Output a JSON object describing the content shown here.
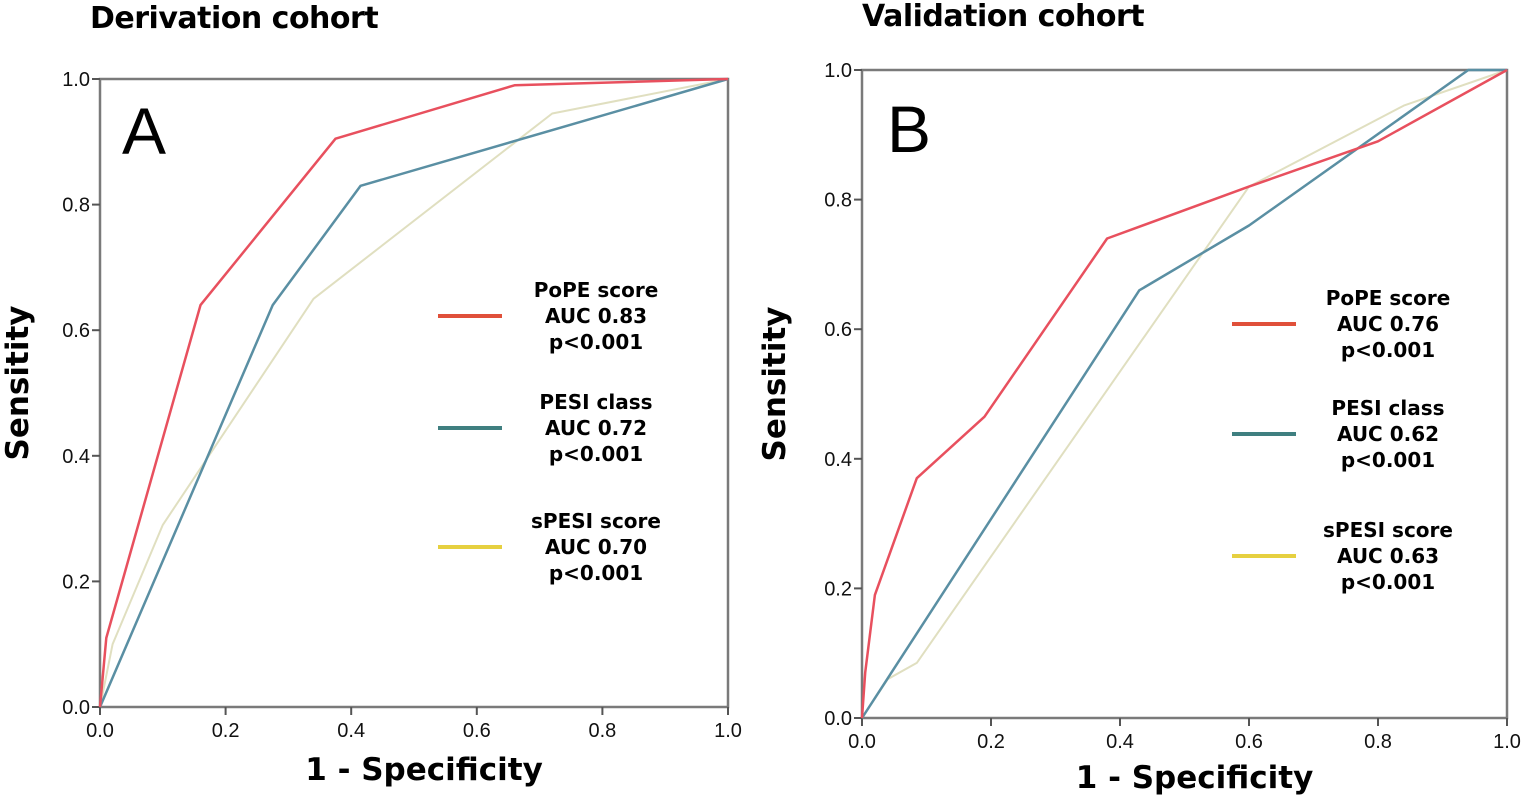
{
  "figure": {
    "panels": [
      {
        "title": "Derivation cohort",
        "letter": "A"
      },
      {
        "title": "Validation cohort",
        "letter": "B"
      }
    ]
  },
  "chart_data": [
    {
      "type": "line",
      "title": "Derivation cohort",
      "panel_label": "A",
      "xlabel": "1 - Specificity",
      "ylabel": "Sensitity",
      "xlim": [
        0,
        1
      ],
      "ylim": [
        0,
        1
      ],
      "xticks": [
        "0.0",
        "0.2",
        "0.4",
        "0.6",
        "0.8",
        "1.0"
      ],
      "yticks": [
        "0.0",
        "0.2",
        "0.4",
        "0.6",
        "0.8",
        "1.0"
      ],
      "grid": false,
      "legend_position": "right",
      "series": [
        {
          "name": "PoPE score",
          "auc_label": "AUC 0.83",
          "p_label": "p<0.001",
          "color": "#e8505e",
          "x": [
            0,
            0.01,
            0.16,
            0.375,
            0.66,
            1.0
          ],
          "y": [
            0,
            0.11,
            0.64,
            0.905,
            0.99,
            1.0
          ]
        },
        {
          "name": "PESI class",
          "auc_label": "AUC 0.72",
          "p_label": "p<0.001",
          "color": "#5a8fa3",
          "x": [
            0,
            0.275,
            0.415,
            1.0
          ],
          "y": [
            0,
            0.64,
            0.83,
            1.0
          ]
        },
        {
          "name": "sPESI score",
          "auc_label": "AUC 0.70",
          "p_label": "p<0.001",
          "color": "#e0dfc0",
          "x": [
            0,
            0.02,
            0.1,
            0.34,
            0.72,
            1.0
          ],
          "y": [
            0,
            0.1,
            0.29,
            0.65,
            0.945,
            1.0
          ]
        }
      ],
      "legend_colors": [
        "#e0503a",
        "#3f7f80",
        "#e6d040"
      ]
    },
    {
      "type": "line",
      "title": "Validation cohort",
      "panel_label": "B",
      "xlabel": "1 - Specificity",
      "ylabel": "Sensitity",
      "xlim": [
        0,
        1
      ],
      "ylim": [
        0,
        1
      ],
      "xticks": [
        "0.0",
        "0.2",
        "0.4",
        "0.6",
        "0.8",
        "1.0"
      ],
      "yticks": [
        "0.0",
        "0.2",
        "0.4",
        "0.6",
        "0.8",
        "1.0"
      ],
      "grid": false,
      "legend_position": "right",
      "series": [
        {
          "name": "PoPE score",
          "auc_label": "AUC 0.76",
          "p_label": "p<0.001",
          "color": "#e8505e",
          "x": [
            0,
            0.005,
            0.02,
            0.085,
            0.19,
            0.38,
            0.6,
            0.8,
            1.0
          ],
          "y": [
            0,
            0.07,
            0.19,
            0.37,
            0.465,
            0.74,
            0.82,
            0.89,
            1.0
          ]
        },
        {
          "name": "PESI class",
          "auc_label": "AUC 0.62",
          "p_label": "p<0.001",
          "color": "#5a8fa3",
          "x": [
            0,
            0.43,
            0.6,
            0.94,
            1.0
          ],
          "y": [
            0,
            0.66,
            0.76,
            1.0,
            1.0
          ]
        },
        {
          "name": "sPESI score",
          "auc_label": "AUC 0.63",
          "p_label": "p<0.001",
          "color": "#e0dfc0",
          "x": [
            0,
            0.04,
            0.085,
            0.6,
            0.84,
            1.0
          ],
          "y": [
            0,
            0.06,
            0.085,
            0.82,
            0.945,
            1.0
          ]
        }
      ],
      "legend_colors": [
        "#e0503a",
        "#3f7f80",
        "#e6d040"
      ]
    }
  ]
}
